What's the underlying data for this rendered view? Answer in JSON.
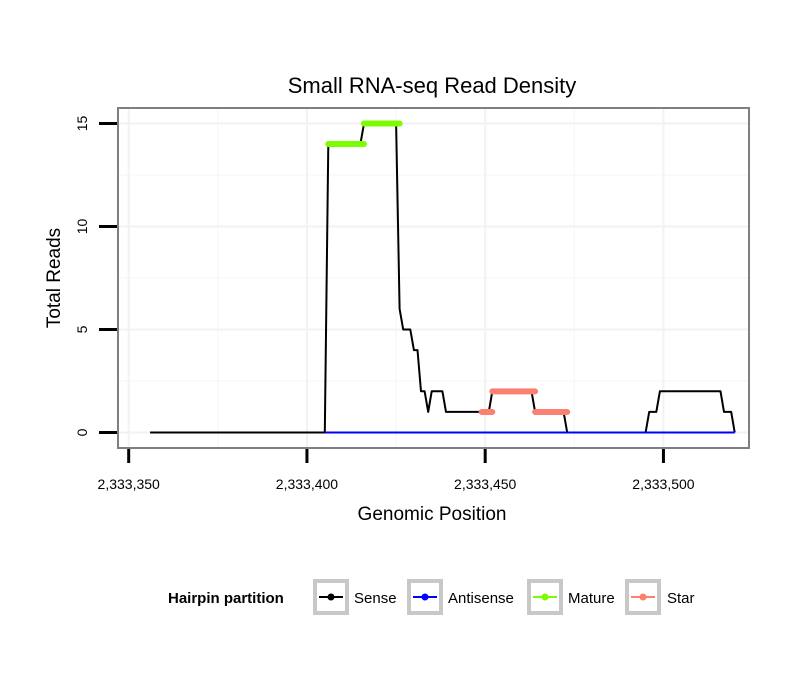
{
  "chart_data": {
    "type": "line",
    "title": "Small RNA-seq Read Density",
    "xlabel": "Genomic Position",
    "ylabel": "Total Reads",
    "xlim": [
      2333347,
      2333524
    ],
    "ylim": [
      -0.75,
      15.75
    ],
    "x_ticks": [
      2333350,
      2333400,
      2333450,
      2333500
    ],
    "x_tick_labels": [
      "2,333,350",
      "2,333,400",
      "2,333,450",
      "2,333,500"
    ],
    "y_ticks": [
      0,
      5,
      10,
      15
    ],
    "y_tick_labels": [
      "0",
      "5",
      "10",
      "15"
    ],
    "grid": true,
    "legend": {
      "title": "Hairpin partition",
      "position": "bottom",
      "entries": [
        {
          "label": "Sense",
          "color": "#000000"
        },
        {
          "label": "Antisense",
          "color": "#0000ff"
        },
        {
          "label": "Mature",
          "color": "#7cfc00"
        },
        {
          "label": "Star",
          "color": "#fa8072"
        }
      ]
    },
    "series": [
      {
        "name": "Sense",
        "color": "#000000",
        "points": [
          [
            2333356,
            0
          ],
          [
            2333405,
            0
          ],
          [
            2333406,
            14
          ],
          [
            2333415,
            14
          ],
          [
            2333416,
            15
          ],
          [
            2333425,
            15
          ],
          [
            2333426,
            6
          ],
          [
            2333427,
            5
          ],
          [
            2333429,
            5
          ],
          [
            2333430,
            4
          ],
          [
            2333431,
            4
          ],
          [
            2333432,
            2
          ],
          [
            2333433,
            2
          ],
          [
            2333434,
            1
          ],
          [
            2333435,
            2
          ],
          [
            2333438,
            2
          ],
          [
            2333439,
            1
          ],
          [
            2333450,
            1
          ],
          [
            2333451,
            1
          ],
          [
            2333452,
            2
          ],
          [
            2333463,
            2
          ],
          [
            2333464,
            1
          ],
          [
            2333472,
            1
          ],
          [
            2333473,
            0
          ],
          [
            2333495,
            0
          ],
          [
            2333496,
            1
          ],
          [
            2333498,
            1
          ],
          [
            2333499,
            2
          ],
          [
            2333516,
            2
          ],
          [
            2333517,
            1
          ],
          [
            2333519,
            1
          ],
          [
            2333520,
            0
          ]
        ]
      },
      {
        "name": "Antisense",
        "color": "#0000ff",
        "points": [
          [
            2333405,
            0
          ],
          [
            2333520,
            0
          ]
        ]
      },
      {
        "name": "Mature",
        "color": "#7cfc00",
        "segments": [
          [
            2333406,
            2333416,
            14
          ],
          [
            2333416,
            2333426,
            15
          ]
        ]
      },
      {
        "name": "Star",
        "color": "#fa8072",
        "segments": [
          [
            2333449,
            2333452,
            1
          ],
          [
            2333452,
            2333464,
            2
          ],
          [
            2333464,
            2333473,
            1
          ]
        ]
      }
    ]
  }
}
